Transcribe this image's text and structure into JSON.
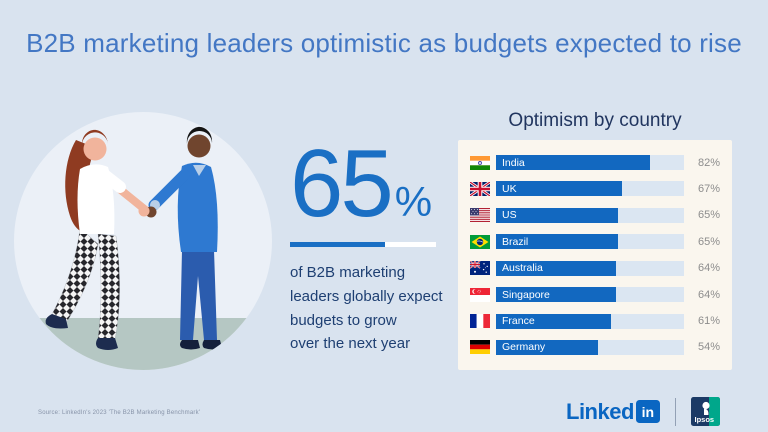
{
  "page": {
    "title": "B2B marketing leaders optimistic as budgets expected to rise",
    "background_color": "#d9e3ef",
    "accent_blue": "#1268c0"
  },
  "stat": {
    "value": "65",
    "unit": "%",
    "progress_percent": 65,
    "description_lines": [
      "of B2B marketing",
      "leaders globally expect",
      "budgets to grow",
      "over the next year"
    ]
  },
  "chart_data": {
    "type": "bar",
    "orientation": "horizontal",
    "title": "Optimism by country",
    "categories": [
      "India",
      "UK",
      "US",
      "Brazil",
      "Australia",
      "Singapore",
      "France",
      "Germany"
    ],
    "values": [
      82,
      67,
      65,
      65,
      64,
      64,
      61,
      54
    ],
    "value_labels": [
      "82%",
      "67%",
      "65%",
      "65%",
      "64%",
      "64%",
      "61%",
      "54%"
    ],
    "xlim": [
      0,
      100
    ],
    "grid": false,
    "legend": false,
    "bar_color": "#1268c0",
    "track_color": "#dbe6f2",
    "panel_color": "#faf6ee"
  },
  "footer": {
    "source": "Source: LinkedIn's 2023 'The B2B Marketing Benchmark'",
    "linkedin_wordmark": "Linked",
    "linkedin_badge": "in",
    "ipsos_label": "Ipsos"
  }
}
